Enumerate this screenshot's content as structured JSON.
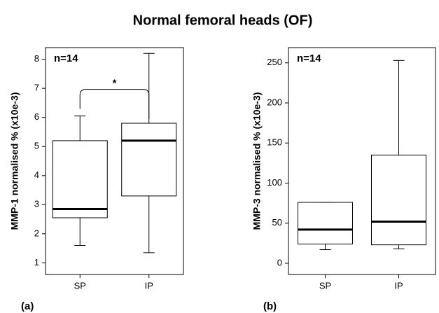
{
  "title": "Normal femoral heads (OF)",
  "chart_data": [
    {
      "type": "box",
      "ylabel": "MMP-1 normalised % (x10e-3)",
      "panel_label": "(a)",
      "annotations": [
        "n=14"
      ],
      "significance": "*",
      "categories": [
        "SP",
        "IP"
      ],
      "min": [
        1.6,
        1.35
      ],
      "q1": [
        2.55,
        3.3
      ],
      "median": [
        2.85,
        5.2
      ],
      "q3": [
        5.2,
        5.8
      ],
      "max": [
        6.05,
        8.2
      ],
      "ylim": [
        0.6,
        8.4
      ],
      "yticks": [
        1,
        2,
        3,
        4,
        5,
        6,
        7,
        8
      ]
    },
    {
      "type": "box",
      "ylabel": "MMP-3 normalised % (x10e-3)",
      "panel_label": "(b)",
      "annotations": [
        "n=14"
      ],
      "categories": [
        "SP",
        "IP"
      ],
      "min": [
        17,
        18
      ],
      "q1": [
        24,
        23
      ],
      "median": [
        42,
        52
      ],
      "q3": [
        76,
        135
      ],
      "max": [
        76,
        253
      ],
      "ylim": [
        -14,
        269
      ],
      "yticks": [
        0,
        50,
        100,
        150,
        200,
        250
      ]
    }
  ]
}
